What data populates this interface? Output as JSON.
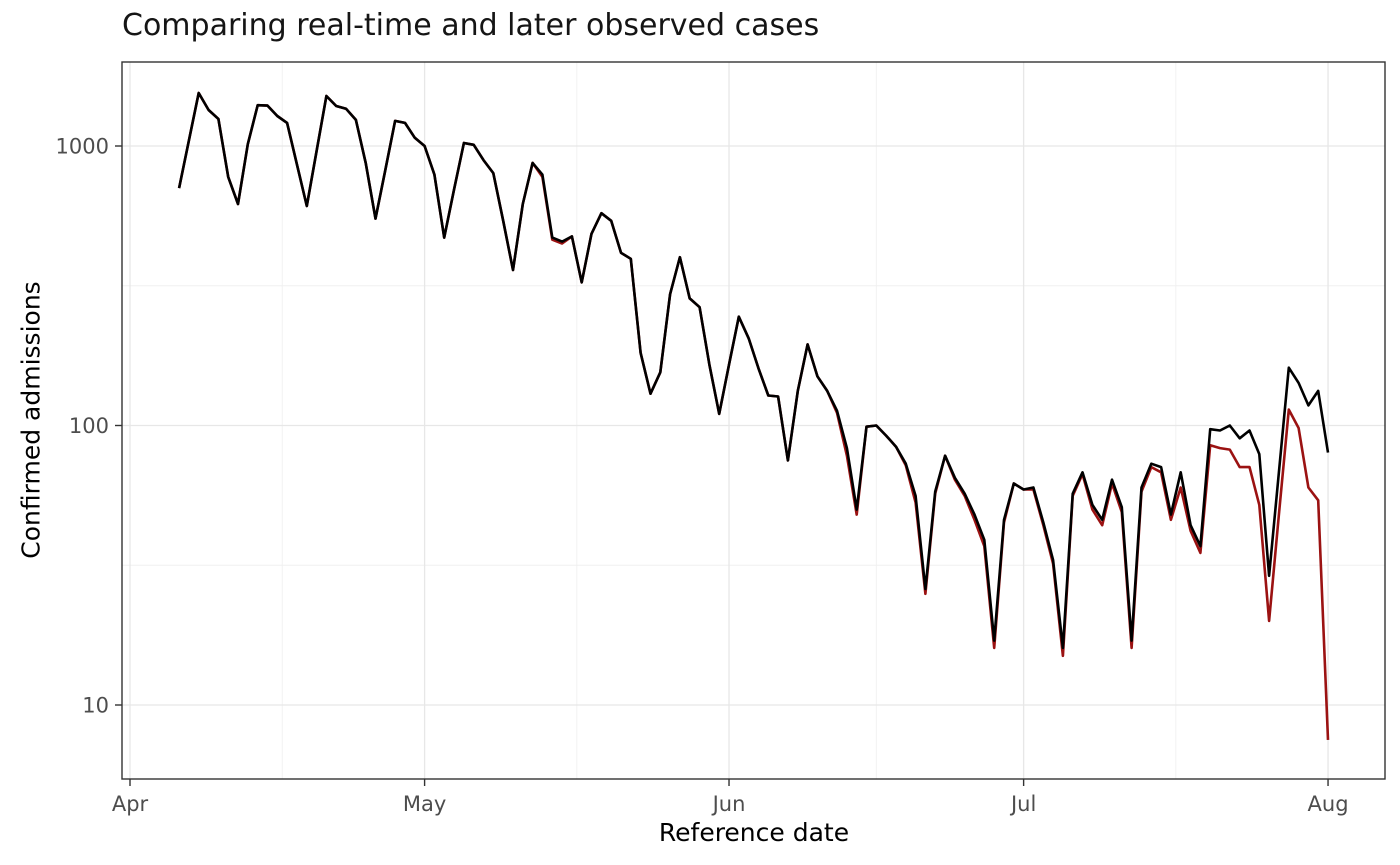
{
  "title": "Comparing real-time and later observed cases",
  "chart_data": {
    "type": "line",
    "title": "Comparing real-time and later observed cases",
    "xlabel": "Reference date",
    "ylabel": "Confirmed admissions",
    "y_scale": "log10",
    "y_ticks": [
      {
        "label": "1000",
        "value": 1000
      },
      {
        "label": "100",
        "value": 100
      },
      {
        "label": "10",
        "value": 10
      }
    ],
    "y_minor_values": [
      316.2,
      31.62
    ],
    "x_unit": "days since Apr 1",
    "x_ticks": [
      {
        "label": "Apr",
        "day": 0
      },
      {
        "label": "May",
        "day": 30
      },
      {
        "label": "Jun",
        "day": 61
      },
      {
        "label": "Jul",
        "day": 91
      },
      {
        "label": "Aug",
        "day": 122
      }
    ],
    "x_minor_days": [
      15.5,
      45.5,
      76,
      106.5
    ],
    "grid": true,
    "legend": "none",
    "colors": {
      "later_observed": "#000000",
      "real_time": "#9b1212",
      "grid_major": "#e7e7e7",
      "grid_minor": "#f0f0f0",
      "panel_border": "#333333",
      "tick_label": "#4d4d4d"
    },
    "series": [
      {
        "name": "later observed",
        "color": "#000000",
        "start_day": 5,
        "values": [
          707,
          1046,
          1548,
          1345,
          1250,
          775,
          620,
          1015,
          1400,
          1395,
          1280,
          1210,
          860,
          610,
          960,
          1510,
          1390,
          1360,
          1240,
          870,
          550,
          820,
          1230,
          1210,
          1070,
          1000,
          790,
          470,
          700,
          1025,
          1010,
          890,
          800,
          540,
          360,
          620,
          870,
          790,
          470,
          455,
          475,
          325,
          485,
          575,
          540,
          415,
          395,
          182,
          130,
          155,
          295,
          400,
          285,
          265,
          165,
          110,
          165,
          245,
          205,
          160,
          128,
          127,
          75,
          133,
          195,
          150,
          133,
          113,
          83,
          50,
          99,
          100,
          92,
          84,
          73,
          56,
          26,
          58,
          78,
          65,
          57,
          48,
          39,
          17,
          46,
          62,
          59,
          60,
          45,
          33,
          16,
          57,
          68,
          52,
          46,
          64,
          51,
          17,
          60,
          73,
          71,
          48,
          68,
          44,
          37,
          97,
          96,
          100,
          90,
          96,
          79,
          29,
          68,
          161,
          142,
          118,
          133,
          80
        ]
      },
      {
        "name": "real-time",
        "color": "#9b1212",
        "start_day": 5,
        "values": [
          707,
          1046,
          1548,
          1345,
          1250,
          775,
          620,
          1015,
          1400,
          1395,
          1280,
          1210,
          860,
          610,
          960,
          1510,
          1390,
          1360,
          1240,
          870,
          550,
          820,
          1230,
          1210,
          1070,
          1000,
          790,
          470,
          700,
          1025,
          1010,
          890,
          800,
          540,
          360,
          620,
          870,
          775,
          462,
          448,
          475,
          325,
          485,
          575,
          540,
          415,
          395,
          182,
          130,
          155,
          295,
          400,
          285,
          265,
          165,
          110,
          165,
          245,
          205,
          160,
          128,
          127,
          75,
          133,
          195,
          150,
          133,
          111,
          78,
          48,
          99,
          100,
          92,
          84,
          72,
          53,
          25,
          57,
          78,
          64,
          56,
          46,
          37,
          16,
          45,
          62,
          59,
          59,
          44,
          32,
          15,
          56,
          67,
          50,
          44,
          62,
          49,
          16,
          58,
          71,
          68,
          46,
          60,
          42,
          35,
          85,
          83,
          82,
          71,
          71,
          52,
          20,
          48,
          114,
          98,
          60,
          54,
          7.5
        ]
      }
    ]
  }
}
